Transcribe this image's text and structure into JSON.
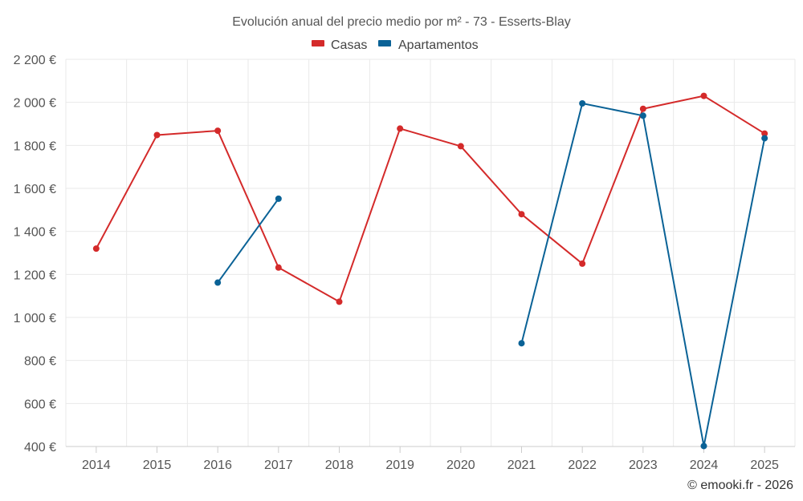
{
  "chart_data": {
    "type": "line",
    "title": "Evolución anual del precio medio por m² - 73 - Esserts-Blay",
    "categories": [
      "2014",
      "2015",
      "2016",
      "2017",
      "2018",
      "2019",
      "2020",
      "2021",
      "2022",
      "2023",
      "2024",
      "2025"
    ],
    "y_ticks": [
      400,
      600,
      800,
      1000,
      1200,
      1400,
      1600,
      1800,
      2000,
      2200
    ],
    "y_tick_labels": [
      "400 €",
      "600 €",
      "800 €",
      "1 000 €",
      "1 200 €",
      "1 400 €",
      "1 600 €",
      "1 800 €",
      "2 000 €",
      "2 200 €"
    ],
    "ylim": [
      400,
      2200
    ],
    "grid": true,
    "legend_position": "top-center",
    "series": [
      {
        "name": "Casas",
        "color": "#d42a2a",
        "values": [
          1320,
          1848,
          1868,
          1232,
          1073,
          1878,
          1796,
          1480,
          1250,
          1970,
          2030,
          1855
        ]
      },
      {
        "name": "Apartamentos",
        "color": "#0a6296",
        "values": [
          null,
          null,
          1162,
          1552,
          null,
          null,
          null,
          880,
          1995,
          1938,
          402,
          1833
        ]
      }
    ],
    "credit": "© emooki.fr - 2026"
  }
}
